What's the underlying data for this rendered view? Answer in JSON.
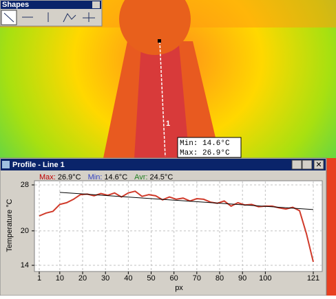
{
  "toolbar": {
    "title": "Shapes"
  },
  "image": {
    "line_label": "1",
    "readout": {
      "min": "Min: 14.6°C",
      "max": "Max: 26.9°C"
    }
  },
  "window": {
    "title": "Profile - Line 1"
  },
  "stats": [
    {
      "label": "Max:",
      "value": "26.9°C",
      "color": "#c00000"
    },
    {
      "label": "Min:",
      "value": "14.6°C",
      "color": "#3040c0"
    },
    {
      "label": "Avr:",
      "value": "24.5°C",
      "color": "#208020"
    }
  ],
  "chart_data": {
    "type": "line",
    "xlabel": "px",
    "ylabel": "Temperature °C",
    "xlim": [
      1,
      121
    ],
    "ylim": [
      14,
      28
    ],
    "xticks": [
      1,
      10,
      20,
      30,
      40,
      50,
      60,
      70,
      80,
      90,
      100,
      121
    ],
    "yticks": [
      14,
      20,
      28
    ],
    "grid": true,
    "series": [
      {
        "color": "#d03a2a",
        "x": [
          1,
          4,
          7,
          10,
          13,
          16,
          19,
          22,
          25,
          28,
          31,
          34,
          37,
          40,
          43,
          46,
          49,
          52,
          55,
          58,
          61,
          64,
          67,
          70,
          73,
          76,
          79,
          82,
          85,
          88,
          91,
          94,
          97,
          100,
          103,
          106,
          109,
          112,
          115,
          118,
          121
        ],
        "values": [
          22.6,
          23.1,
          23.4,
          24.6,
          24.9,
          25.5,
          26.3,
          26.4,
          26.1,
          26.5,
          26.2,
          26.6,
          25.9,
          26.6,
          26.9,
          26.0,
          26.3,
          26.1,
          25.4,
          25.9,
          25.5,
          25.7,
          25.2,
          25.6,
          25.5,
          25.0,
          24.8,
          25.2,
          24.3,
          24.9,
          24.5,
          24.6,
          24.2,
          24.3,
          24.3,
          24.0,
          23.8,
          24.1,
          23.5,
          19.5,
          14.6
        ]
      },
      {
        "color": "#000000",
        "x": [
          10,
          121
        ],
        "values": [
          26.7,
          23.7
        ]
      }
    ]
  }
}
